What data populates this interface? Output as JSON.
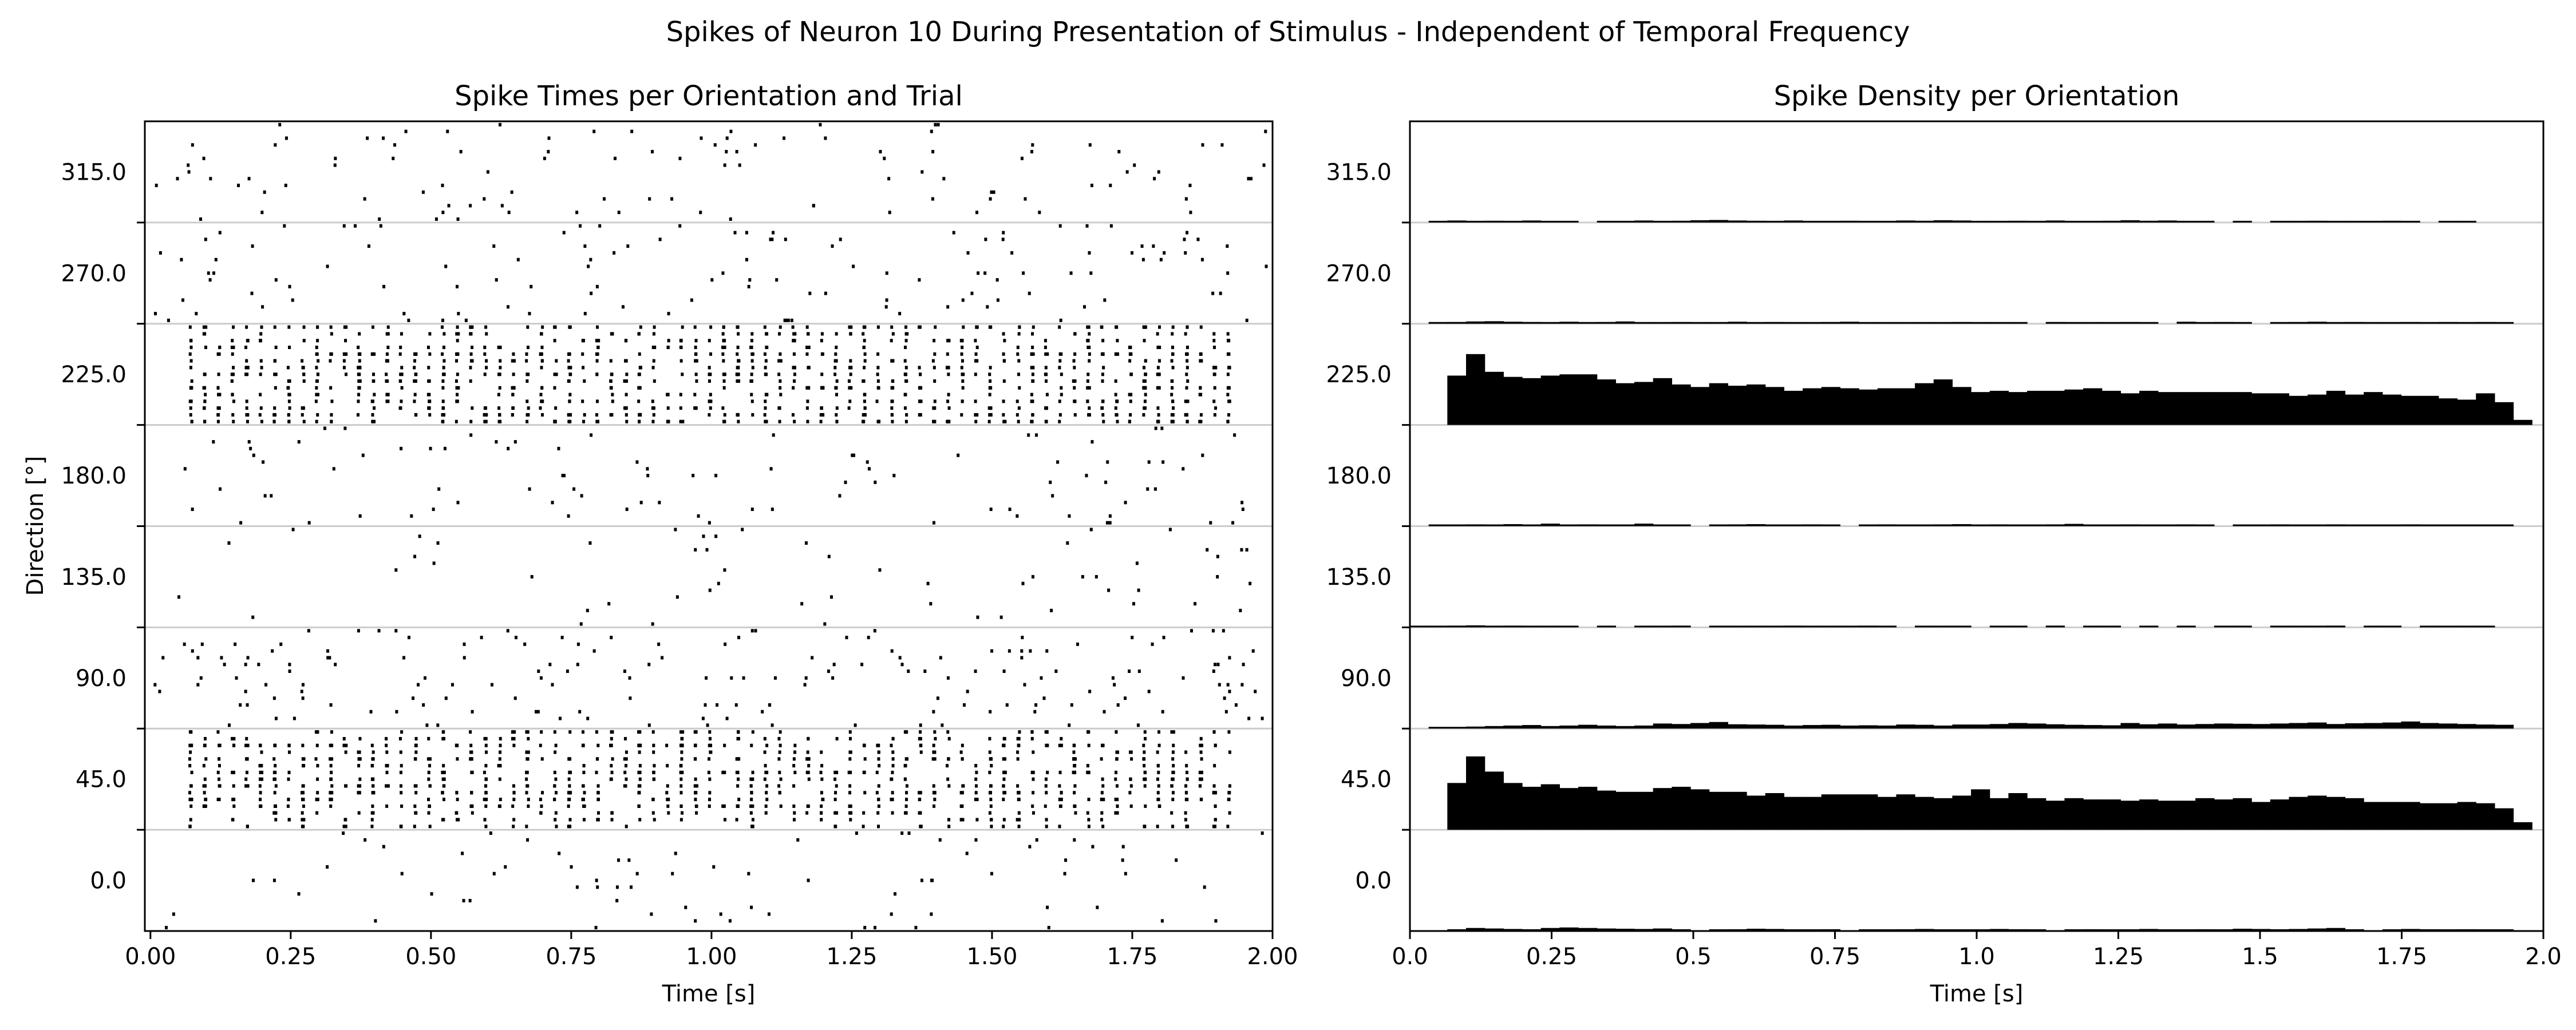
{
  "suptitle": "Spikes of Neuron 10 During Presentation of Stimulus - Independent of Temporal Frequency",
  "chart_data": [
    {
      "type": "scatter",
      "title": "Spike Times per Orientation and Trial",
      "xlabel": "Time [s]",
      "ylabel": "Direction [°]",
      "xlim": [
        -0.01,
        2.0
      ],
      "xticks": [
        "0.00",
        "0.25",
        "0.50",
        "0.75",
        "1.00",
        "1.25",
        "1.50",
        "1.75",
        "2.00"
      ],
      "x_tick_values": [
        0,
        0.25,
        0.5,
        0.75,
        1.0,
        1.25,
        1.5,
        1.75,
        2.0
      ],
      "yticks": [
        "0.0",
        "45.0",
        "90.0",
        "135.0",
        "180.0",
        "225.0",
        "270.0",
        "315.0"
      ],
      "directions": [
        0,
        45,
        90,
        135,
        180,
        225,
        270,
        315
      ],
      "trials_per_direction": 15,
      "stimulus_onset_s": 0.07,
      "stimulus_offset_s": 1.95,
      "strong_response_directions": [
        45,
        225
      ],
      "approx_spike_rate_hz": {
        "0": 3,
        "45": 40,
        "90": 6,
        "135": 2,
        "180": 3,
        "225": 40,
        "270": 4,
        "315": 4
      },
      "grid": "horizontal separators between directions",
      "marker_color": "#000000",
      "separator_color": "#cccccc"
    },
    {
      "type": "bar",
      "title": "Spike Density per Orientation",
      "xlabel": "Time [s]",
      "xlim": [
        0.0,
        2.0
      ],
      "xticks": [
        "0.0",
        "0.25",
        "0.5",
        "0.75",
        "1.0",
        "1.25",
        "1.5",
        "1.75",
        "2.0"
      ],
      "x_tick_values": [
        0,
        0.25,
        0.5,
        0.75,
        1.0,
        1.25,
        1.5,
        1.75,
        2.0
      ],
      "yticks": [
        "0.0",
        "45.0",
        "90.0",
        "135.0",
        "180.0",
        "225.0",
        "270.0",
        "315.0"
      ],
      "bin_width_s": 0.033,
      "bin_start_s": 0.0,
      "bar_color": "#000000",
      "series": [
        {
          "direction": 45,
          "values": [
            0,
            0,
            1.85,
            2.9,
            2.3,
            1.85,
            1.7,
            1.8,
            1.65,
            1.7,
            1.55,
            1.5,
            1.5,
            1.65,
            1.7,
            1.6,
            1.5,
            1.5,
            1.35,
            1.45,
            1.3,
            1.3,
            1.4,
            1.4,
            1.4,
            1.3,
            1.4,
            1.3,
            1.25,
            1.35,
            1.6,
            1.25,
            1.45,
            1.25,
            1.15,
            1.25,
            1.2,
            1.2,
            1.15,
            1.2,
            1.15,
            1.15,
            1.25,
            1.2,
            1.25,
            1.1,
            1.2,
            1.3,
            1.35,
            1.3,
            1.25,
            1.1,
            1.1,
            1.1,
            1.05,
            1.05,
            1.1,
            1.05,
            0.85,
            0.3
          ]
        },
        {
          "direction": 225,
          "values": [
            0,
            0,
            1.95,
            2.8,
            2.1,
            1.9,
            1.85,
            1.95,
            2.0,
            2.0,
            1.8,
            1.65,
            1.7,
            1.85,
            1.6,
            1.5,
            1.65,
            1.55,
            1.6,
            1.5,
            1.35,
            1.45,
            1.5,
            1.45,
            1.4,
            1.45,
            1.45,
            1.65,
            1.8,
            1.5,
            1.3,
            1.35,
            1.3,
            1.35,
            1.35,
            1.4,
            1.45,
            1.35,
            1.25,
            1.35,
            1.3,
            1.3,
            1.3,
            1.3,
            1.3,
            1.25,
            1.25,
            1.15,
            1.2,
            1.35,
            1.2,
            1.3,
            1.2,
            1.15,
            1.15,
            1.05,
            1.0,
            1.25,
            0.9,
            0.2
          ]
        },
        {
          "direction": 0,
          "values": [
            0,
            0,
            0.07,
            0.12,
            0.1,
            0.08,
            0.07,
            0.12,
            0.14,
            0.12,
            0.1,
            0.09,
            0.08,
            0.1,
            0.07,
            0,
            0.05,
            0.07,
            0.09,
            0.08,
            0.06,
            0.05,
            0.07,
            0,
            0.06,
            0.05,
            0.07,
            0.08,
            0.05,
            0.06,
            0.05,
            0.08,
            0.07,
            0.06,
            0,
            0.05,
            0.07,
            0.06,
            0.05,
            0.08,
            0.06,
            0.05,
            0.07,
            0.06,
            0.09,
            0.08,
            0.07,
            0.08,
            0.1,
            0.12,
            0.07,
            0,
            0.06,
            0.08,
            0.07,
            0.06,
            0.07,
            0.05,
            0.06,
            0
          ]
        },
        {
          "direction": 90,
          "values": [
            0,
            0.04,
            0.05,
            0.08,
            0.1,
            0.12,
            0.14,
            0.1,
            0.12,
            0.15,
            0.12,
            0.1,
            0.12,
            0.2,
            0.18,
            0.22,
            0.26,
            0.17,
            0.16,
            0.15,
            0.12,
            0.14,
            0.15,
            0.12,
            0.13,
            0.12,
            0.16,
            0.15,
            0.12,
            0.16,
            0.16,
            0.18,
            0.22,
            0.2,
            0.17,
            0.15,
            0.14,
            0.13,
            0.22,
            0.17,
            0.2,
            0.16,
            0.18,
            0.2,
            0.19,
            0.18,
            0.2,
            0.22,
            0.24,
            0.18,
            0.21,
            0.22,
            0.24,
            0.28,
            0.22,
            0.2,
            0.18,
            0.16,
            0.15,
            0
          ]
        },
        {
          "direction": 135,
          "values": [
            0.05,
            0.06,
            0.07,
            0.08,
            0.06,
            0.07,
            0.06,
            0.05,
            0.06,
            0,
            0.05,
            0,
            0.06,
            0.05,
            0.07,
            0,
            0.06,
            0.05,
            0.06,
            0.05,
            0.07,
            0.06,
            0.05,
            0.06,
            0.07,
            0.05,
            0,
            0.06,
            0.05,
            0.06,
            0,
            0.05,
            0.06,
            0,
            0.07,
            0,
            0.05,
            0.06,
            0,
            0.05,
            0,
            0.06,
            0,
            0.05,
            0.06,
            0,
            0.05,
            0.06,
            0.05,
            0.07,
            0,
            0.05,
            0.06,
            0,
            0.05,
            0.06,
            0.05,
            0.06,
            0,
            0
          ]
        },
        {
          "direction": 180,
          "values": [
            0,
            0.04,
            0.05,
            0.07,
            0.06,
            0.08,
            0.06,
            0.1,
            0.06,
            0.07,
            0.06,
            0.05,
            0.1,
            0.06,
            0.05,
            0,
            0.06,
            0.07,
            0.08,
            0.05,
            0.06,
            0.07,
            0.05,
            0,
            0.06,
            0.07,
            0.05,
            0.06,
            0.07,
            0.08,
            0.06,
            0.07,
            0.05,
            0.06,
            0.07,
            0.09,
            0.06,
            0.05,
            0.07,
            0.06,
            0.05,
            0.07,
            0.06,
            0,
            0.05,
            0.06,
            0.07,
            0.06,
            0.05,
            0.07,
            0.06,
            0.05,
            0.06,
            0.07,
            0.06,
            0.05,
            0.06,
            0.05,
            0.04,
            0
          ]
        },
        {
          "direction": 270,
          "values": [
            0,
            0.05,
            0.07,
            0.09,
            0.1,
            0.08,
            0.07,
            0.06,
            0.08,
            0.05,
            0.07,
            0.09,
            0.06,
            0.05,
            0.07,
            0.06,
            0.05,
            0.08,
            0.06,
            0.07,
            0.05,
            0.06,
            0.07,
            0.08,
            0.06,
            0.05,
            0.04,
            0.06,
            0.05,
            0.07,
            0.05,
            0.04,
            0.06,
            0,
            0.07,
            0.05,
            0.06,
            0.05,
            0.07,
            0.06,
            0,
            0.08,
            0.05,
            0.07,
            0.06,
            0,
            0.06,
            0.07,
            0.08,
            0.06,
            0.07,
            0.05,
            0.06,
            0.07,
            0.06,
            0.07,
            0.06,
            0.07,
            0.06,
            0
          ]
        },
        {
          "direction": 315,
          "values": [
            0,
            0.06,
            0.08,
            0.06,
            0.07,
            0.05,
            0.08,
            0.06,
            0.05,
            0,
            0.06,
            0.05,
            0.08,
            0.06,
            0.07,
            0.09,
            0.1,
            0.08,
            0.07,
            0.06,
            0.08,
            0.06,
            0.05,
            0.07,
            0.06,
            0.05,
            0.08,
            0.07,
            0.09,
            0.08,
            0.06,
            0.05,
            0.07,
            0.06,
            0.08,
            0.06,
            0.05,
            0.07,
            0.09,
            0.07,
            0.08,
            0.06,
            0.05,
            0,
            0.06,
            0,
            0.05,
            0.06,
            0.07,
            0.06,
            0.05,
            0.06,
            0.07,
            0.05,
            0,
            0.06,
            0.05,
            0,
            0,
            0
          ]
        }
      ]
    }
  ]
}
